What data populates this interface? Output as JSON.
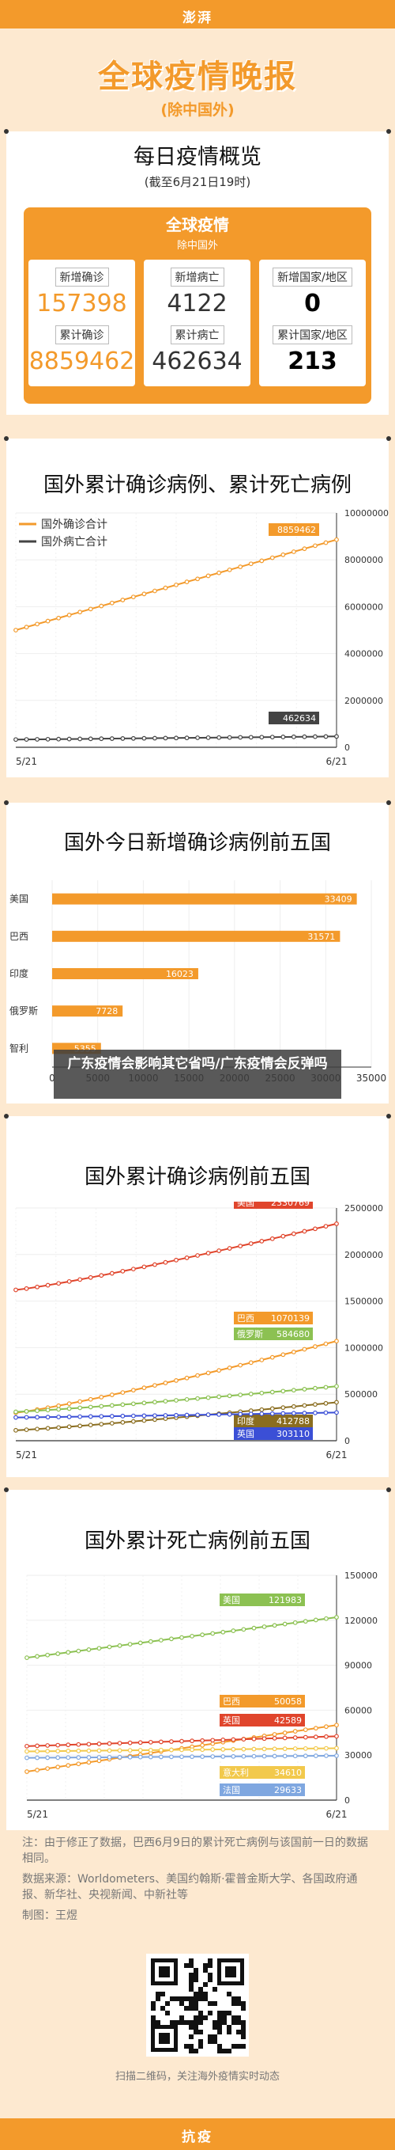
{
  "header": {
    "brand": "澎湃"
  },
  "hero": {
    "title": "全球疫情晚报",
    "subtitle": "(除中国外)"
  },
  "overview": {
    "title": "每日疫情概览",
    "subtitle": "(截至6月21日19时)",
    "box_title": "全球疫情",
    "box_subtitle": "除中国外",
    "cards": [
      {
        "label1": "新增确诊",
        "value1": "157398",
        "label2": "累计确诊",
        "value2": "8859462",
        "color": "#f39a2b"
      },
      {
        "label1": "新增病亡",
        "value1": "4122",
        "label2": "累计病亡",
        "value2": "462634",
        "color": "#333333"
      },
      {
        "label1": "新增国家/地区",
        "value1": "0",
        "label2": "累计国家/地区",
        "value2": "213",
        "color": "#000000"
      }
    ]
  },
  "chart_data": [
    {
      "type": "line",
      "title": "国外累计确诊病例、累计死亡病例",
      "x_start": "5/21",
      "x_end": "6/21",
      "ylim": [
        0,
        10000000
      ],
      "y_ticks": [
        "0",
        "2000000",
        "4000000",
        "6000000",
        "8000000",
        "10000000"
      ],
      "series": [
        {
          "name": "国外确诊合计",
          "color": "#f39a2b",
          "start": 5000000,
          "end": 8859462,
          "end_label": "8859462"
        },
        {
          "name": "国外病亡合计",
          "color": "#444444",
          "start": 330000,
          "end": 462634,
          "end_label": "462634"
        }
      ]
    },
    {
      "type": "bar",
      "title": "国外今日新增确诊病例前五国",
      "categories": [
        "美国",
        "巴西",
        "印度",
        "俄罗斯",
        "智利"
      ],
      "values": [
        33409,
        31571,
        16023,
        7728,
        5355
      ],
      "value_labels": [
        "33409",
        "31571",
        "16023",
        "7728",
        "5355"
      ],
      "xlim": [
        0,
        35000
      ],
      "x_ticks": [
        "0",
        "5000",
        "10000",
        "15000",
        "20000",
        "25000",
        "30000",
        "35000"
      ],
      "color": "#f39a2b"
    },
    {
      "type": "line",
      "title": "国外累计确诊病例前五国",
      "x_start": "5/21",
      "x_end": "6/21",
      "ylim": [
        0,
        2500000
      ],
      "y_ticks": [
        "0",
        "500000",
        "1000000",
        "1500000",
        "2000000",
        "2500000"
      ],
      "series": [
        {
          "name": "美国",
          "color": "#e0452c",
          "start": 1620000,
          "end": 2330769,
          "end_label": "2330769"
        },
        {
          "name": "巴西",
          "color": "#f39a2b",
          "start": 300000,
          "end": 1070139,
          "end_label": "1070139"
        },
        {
          "name": "俄罗斯",
          "color": "#8cc152",
          "start": 310000,
          "end": 584680,
          "end_label": "584680"
        },
        {
          "name": "印度",
          "color": "#8a6d1f",
          "start": 112000,
          "end": 412788,
          "end_label": "412788"
        },
        {
          "name": "英国",
          "color": "#3b4fd6",
          "start": 250000,
          "end": 303110,
          "end_label": "303110"
        }
      ]
    },
    {
      "type": "line",
      "title": "国外累计死亡病例前五国",
      "x_start": "5/21",
      "x_end": "6/21",
      "ylim": [
        0,
        150000
      ],
      "y_ticks": [
        "0",
        "30000",
        "60000",
        "90000",
        "120000",
        "150000"
      ],
      "series": [
        {
          "name": "美国",
          "color": "#8cc152",
          "start": 95000,
          "end": 121983,
          "end_label": "121983"
        },
        {
          "name": "巴西",
          "color": "#f39a2b",
          "start": 19000,
          "end": 50058,
          "end_label": "50058"
        },
        {
          "name": "英国",
          "color": "#e0452c",
          "start": 36000,
          "end": 42589,
          "end_label": "42589"
        },
        {
          "name": "意大利",
          "color": "#f2c94c",
          "start": 32500,
          "end": 34610,
          "end_label": "34610"
        },
        {
          "name": "法国",
          "color": "#7fa7e0",
          "start": 28200,
          "end": 29633,
          "end_label": "29633"
        }
      ]
    }
  ],
  "overlay": {
    "text": "广东疫情会影响其它省吗/广东疫情会反弹吗"
  },
  "notes": {
    "note": "注：由于修正了数据，巴西6月9日的累计死亡病例与该国前一日的数据相同。",
    "source": "数据来源：Worldometers、美国约翰斯·霍普金斯大学、各国政府通报、新华社、央视新闻、中新社等",
    "author": "制图：王煜"
  },
  "qr_caption": "扫描二维码，关注海外疫情实时动态",
  "footer": {
    "label": "抗疫"
  }
}
